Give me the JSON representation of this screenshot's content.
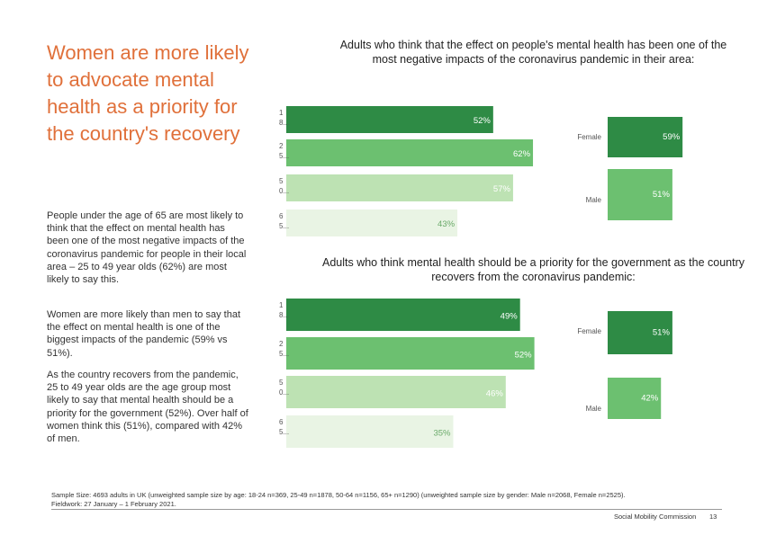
{
  "heading": "Women are more likely to advocate mental health as a priority for the country's recovery",
  "paragraphs": [
    "People under the age of 65 are most likely to think that the effect on mental health has been one of the most negative impacts of the coronavirus pandemic for people in their local area – 25 to 49 year olds (62%) are most likely to say this.",
    "Women are more likely than men to say that the effect on mental health is one of the biggest impacts of the pandemic (59% vs 51%).",
    "As the country recovers from the pandemic, 25 to 49 year olds are the age group most likely to say that mental health should be a priority for the government (52%). Over half of women think this (51%), compared with 42% of men."
  ],
  "chart_data": [
    {
      "type": "bar",
      "title": "Adults who think that the effect on people's mental health has been one of the most negative impacts of the coronavirus pandemic in their area:",
      "categories": [
        "18...",
        "25...",
        "50...",
        "65..."
      ],
      "values": [
        52,
        62,
        57,
        43
      ],
      "value_labels": [
        "52%",
        "62%",
        "57%",
        "43%"
      ],
      "colors": [
        "#2e8b45",
        "#6cc070",
        "#bde2b3",
        "#e9f4e4"
      ]
    },
    {
      "type": "bar",
      "categories": [
        "Female",
        "Male"
      ],
      "values": [
        59,
        51
      ],
      "value_labels": [
        "59%",
        "51%"
      ],
      "colors": [
        "#2e8b45",
        "#6cc070"
      ]
    },
    {
      "type": "bar",
      "title": "Adults who think mental health should be a priority for the government as the country recovers from the coronavirus pandemic:",
      "categories": [
        "18...",
        "25...",
        "50...",
        "65..."
      ],
      "values": [
        49,
        52,
        46,
        35
      ],
      "value_labels": [
        "49%",
        "52%",
        "46%",
        "35%"
      ],
      "colors": [
        "#2e8b45",
        "#6cc070",
        "#bde2b3",
        "#e9f4e4"
      ]
    },
    {
      "type": "bar",
      "categories": [
        "Female",
        "Male"
      ],
      "values": [
        51,
        42
      ],
      "value_labels": [
        "51%",
        "42%"
      ],
      "colors": [
        "#2e8b45",
        "#6cc070"
      ]
    }
  ],
  "footer": {
    "note": "Sample Size: 4693 adults in UK (unweighted sample size by age: 18-24 n=369, 25-49 n=1878, 50-64 n=1156, 65+ n=1290) (unweighted sample size by gender: Male n=2068, Female n=2525).",
    "fieldwork": "Fieldwork: 27 January – 1 February 2021.",
    "source": "Social Mobility Commission",
    "page": "13"
  }
}
